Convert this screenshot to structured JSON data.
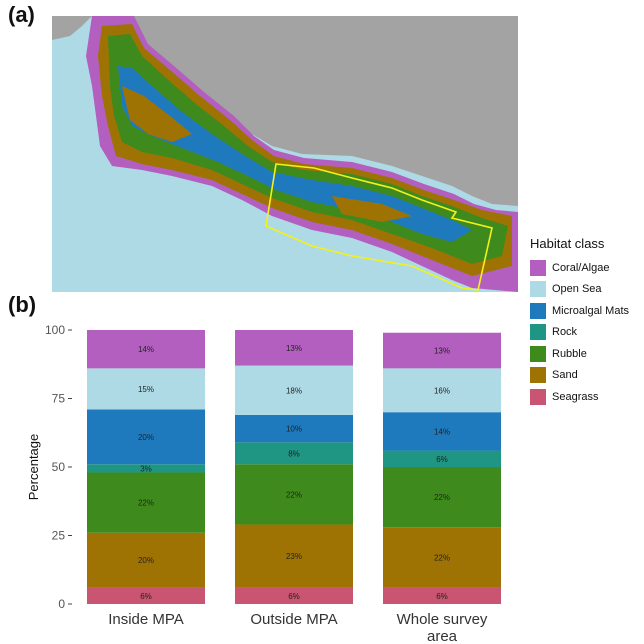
{
  "panel_a_label": "(a)",
  "panel_b_label": "(b)",
  "legend": {
    "title": "Habitat class",
    "items": [
      {
        "label": "Coral/Algae",
        "color": "#b35fbf"
      },
      {
        "label": "Open Sea",
        "color": "#aedae6"
      },
      {
        "label": "Microalgal Mats",
        "color": "#1f7abd"
      },
      {
        "label": "Rock",
        "color": "#1f9683"
      },
      {
        "label": "Rubble",
        "color": "#3f8a1c"
      },
      {
        "label": "Sand",
        "color": "#9e7304"
      },
      {
        "label": "Seagrass",
        "color": "#c95572"
      }
    ]
  },
  "map_colors": {
    "sea": "#aedae6",
    "land": "#a3a3a3",
    "mpa_outline": "#f2f21a"
  },
  "chart_data": {
    "type": "bar",
    "stacked": true,
    "categories": [
      "Inside MPA",
      "Outside MPA",
      "Whole survey area"
    ],
    "ylabel": "Percentage",
    "ylim": [
      0,
      100
    ],
    "yticks": [
      0,
      25,
      50,
      75,
      100
    ],
    "stack_order_bottom_to_top": [
      "Seagrass",
      "Sand",
      "Rubble",
      "Rock",
      "Microalgal Mats",
      "Open Sea",
      "Coral/Algae"
    ],
    "series": [
      {
        "name": "Seagrass",
        "values": [
          6,
          6,
          6
        ],
        "labels": [
          "6%",
          "6%",
          "6%"
        ]
      },
      {
        "name": "Sand",
        "values": [
          20,
          23,
          22
        ],
        "labels": [
          "20%",
          "23%",
          "22%"
        ]
      },
      {
        "name": "Rubble",
        "values": [
          22,
          22,
          22
        ],
        "labels": [
          "22%",
          "22%",
          "22%"
        ]
      },
      {
        "name": "Rock",
        "values": [
          3,
          8,
          6
        ],
        "labels": [
          "3%",
          "8%",
          "6%"
        ]
      },
      {
        "name": "Microalgal Mats",
        "values": [
          20,
          10,
          14
        ],
        "labels": [
          "20%",
          "10%",
          "14%"
        ]
      },
      {
        "name": "Open Sea",
        "values": [
          15,
          18,
          16
        ],
        "labels": [
          "15%",
          "18%",
          "16%"
        ]
      },
      {
        "name": "Coral/Algae",
        "values": [
          14,
          13,
          13
        ],
        "labels": [
          "14%",
          "13%",
          "13%"
        ]
      }
    ]
  }
}
